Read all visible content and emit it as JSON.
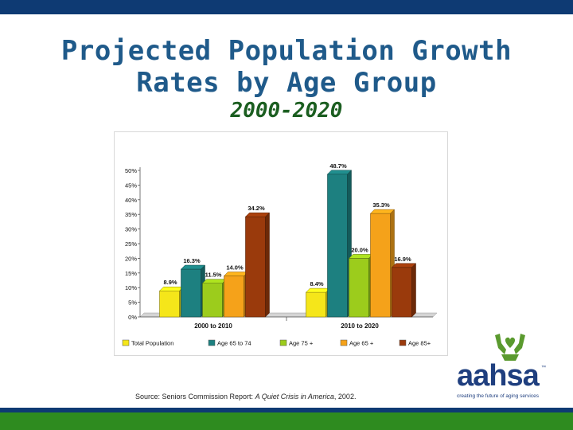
{
  "slide": {
    "title_line1": "Projected Population Growth",
    "title_line2": "Rates by Age Group",
    "subtitle": "2000-2020",
    "source_prefix": "Source: Seniors Commission Report: ",
    "source_italic": "A Quiet Crisis in America",
    "source_suffix": ", 2002."
  },
  "logo": {
    "name": "aahsa",
    "trademark": "™",
    "tagline": "creating the future of aging services",
    "brand_colors": {
      "mark": "#5a9a2e",
      "text": "#1f3f7f"
    }
  },
  "colors": {
    "top_bar": "#0e3a73",
    "bottom_navy": "#0e3a73",
    "bottom_green": "#2e8b1f",
    "title": "#1f5a8a",
    "subtitle": "#1b5e20"
  },
  "chart_data": {
    "type": "bar",
    "categories": [
      "2000 to 2010",
      "2010 to 2020"
    ],
    "series": [
      {
        "name": "Total Population",
        "values": [
          8.9,
          8.4
        ],
        "labels": [
          "8.9%",
          "8.4%"
        ],
        "color": "#f5e61a"
      },
      {
        "name": "Age 65 to 74",
        "values": [
          16.3,
          48.7
        ],
        "labels": [
          "16.3%",
          "48.7%"
        ],
        "color": "#1d8080"
      },
      {
        "name": "Age 75 +",
        "values": [
          11.5,
          20.0
        ],
        "labels": [
          "11.5%",
          "20.0%"
        ],
        "color": "#9ccc1c"
      },
      {
        "name": "Age 65 +",
        "values": [
          14.0,
          35.3
        ],
        "labels": [
          "14.0%",
          "35.3%"
        ],
        "color": "#f5a21a"
      },
      {
        "name": "Age 85+",
        "values": [
          34.2,
          16.9
        ],
        "labels": [
          "34.2%",
          "16.9%"
        ],
        "color": "#9a3a0c"
      }
    ],
    "ylim": [
      0,
      50
    ],
    "yticks": [
      "0%",
      "5%",
      "10%",
      "15%",
      "20%",
      "25%",
      "30%",
      "35%",
      "40%",
      "45%",
      "50%"
    ],
    "ytick_values": [
      0,
      5,
      10,
      15,
      20,
      25,
      30,
      35,
      40,
      45,
      50
    ],
    "grid": false,
    "legend_position": "bottom"
  }
}
